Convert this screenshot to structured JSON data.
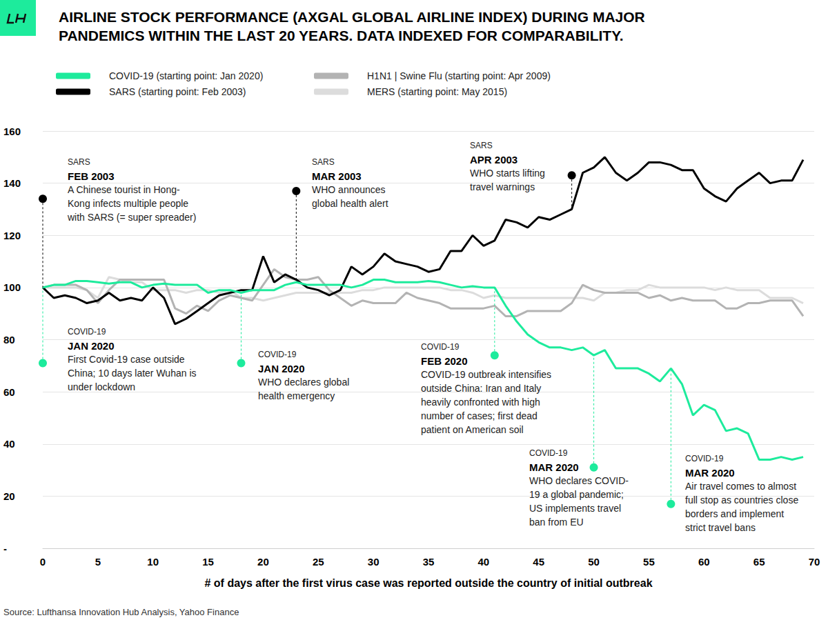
{
  "chart_data": {
    "type": "line",
    "title": "AIRLINE STOCK PERFORMANCE (AXGAL GLOBAL AIRLINE INDEX) DURING MAJOR\nPANDEMICS WITHIN THE LAST 20 YEARS. DATA INDEXED FOR COMPARABILITY.",
    "x_label": "# of days after the first virus case was reported outside the country of initial outbreak",
    "source": "Source: Lufthansa Innovation Hub Analysis, Yahoo Finance",
    "x": [
      0,
      1,
      2,
      3,
      4,
      5,
      6,
      7,
      8,
      9,
      10,
      11,
      12,
      13,
      14,
      15,
      16,
      17,
      18,
      19,
      20,
      21,
      22,
      23,
      24,
      25,
      26,
      27,
      28,
      29,
      30,
      31,
      32,
      33,
      34,
      35,
      36,
      37,
      38,
      39,
      40,
      41,
      42,
      43,
      44,
      45,
      46,
      47,
      48,
      49,
      50,
      51,
      52,
      53,
      54,
      55,
      56,
      57,
      58,
      59,
      60,
      61,
      62,
      63,
      64,
      65,
      66,
      67,
      68,
      69
    ],
    "series": [
      {
        "name": "COVID-19 (starting point: Jan 2020)",
        "color": "#1deb9c",
        "values": [
          100,
          101,
          101,
          102.5,
          102.5,
          102,
          101.5,
          102,
          102,
          100,
          101,
          101.5,
          101,
          101,
          101,
          98,
          99,
          99,
          98,
          99,
          99,
          99,
          101,
          102,
          101,
          101,
          101,
          101,
          100,
          101,
          103,
          103,
          102,
          102,
          102,
          102.5,
          102,
          101,
          100,
          100.5,
          100,
          100,
          93,
          87,
          82,
          79,
          77,
          77,
          76,
          77,
          74,
          76,
          69,
          69,
          69,
          67,
          64,
          69,
          63,
          51,
          55,
          53,
          45,
          46,
          44,
          34,
          34,
          35,
          34,
          35
        ]
      },
      {
        "name": "SARS (starting point: Feb 2003)",
        "color": "#000000",
        "values": [
          100,
          96,
          97,
          96,
          94,
          95,
          98,
          95,
          96,
          95,
          100,
          96,
          86,
          88,
          91,
          94,
          97,
          98,
          99,
          99,
          112,
          102,
          105,
          103,
          100,
          99,
          97,
          99,
          108,
          105,
          108,
          113,
          110,
          109,
          108,
          106,
          107,
          114,
          114,
          120,
          116,
          118,
          126,
          125,
          123,
          127,
          126,
          128,
          130,
          144,
          146,
          150,
          144,
          141,
          144,
          148,
          148,
          147,
          145,
          145,
          138,
          135,
          133,
          138,
          141,
          144,
          140,
          141,
          141,
          149
        ]
      },
      {
        "name": "H1N1 | Swine Flu (starting point: Apr 2009)",
        "color": "#b3b3b3",
        "values": [
          100,
          101,
          101,
          101,
          99,
          94,
          99,
          103,
          103,
          103,
          103,
          103,
          92,
          90,
          93,
          91,
          95,
          97,
          96,
          95,
          101,
          107,
          104,
          103,
          103,
          104,
          99,
          96,
          93,
          95,
          94,
          94,
          94,
          98,
          96,
          95,
          94,
          92,
          92,
          92,
          92,
          93,
          89,
          89,
          91,
          91,
          91,
          91,
          94,
          101,
          99,
          98,
          98,
          98,
          98,
          96,
          97,
          95,
          96,
          95,
          95,
          95,
          92,
          92,
          94,
          94,
          95,
          95,
          95,
          89
        ]
      },
      {
        "name": "MERS (starting point: May 2015)",
        "color": "#dcdcdc",
        "values": [
          100,
          100,
          100,
          100,
          99,
          96,
          104,
          103,
          102,
          102,
          99,
          99,
          99,
          98,
          99,
          99,
          98,
          99,
          96,
          96,
          95,
          96,
          97,
          98,
          98,
          98,
          98,
          98,
          98,
          99,
          99,
          100,
          100,
          100,
          100,
          100,
          100,
          99,
          99,
          98,
          96,
          97,
          96,
          96,
          96,
          96,
          96,
          96,
          96,
          96,
          95,
          98,
          98,
          99,
          99,
          101,
          100,
          100,
          100,
          100,
          100,
          99,
          100,
          99,
          99,
          99,
          96,
          96,
          96,
          94
        ]
      }
    ],
    "xlim": [
      0,
      70
    ],
    "xticks": [
      0,
      5,
      10,
      15,
      20,
      25,
      30,
      35,
      40,
      45,
      50,
      55,
      60,
      65,
      70
    ],
    "ylim": [
      0,
      160
    ],
    "yticks": [
      {
        "value": 0,
        "label": "-"
      },
      20,
      40,
      60,
      80,
      100,
      120,
      140,
      160
    ],
    "grid": true,
    "legend": "top-left",
    "annotations": [
      {
        "series": "SARS",
        "date": "FEB 2003",
        "text": "A Chinese tourist in Hong-\nKong infects multiple people\nwith SARS (= super spreader)",
        "x": 0
      },
      {
        "series": "SARS",
        "date": "MAR 2003",
        "text": "WHO announces\nglobal health alert",
        "x": 23
      },
      {
        "series": "SARS",
        "date": "APR 2003",
        "text": "WHO starts lifting\ntravel warnings",
        "x": 48
      },
      {
        "series": "COVID-19",
        "date": "JAN 2020",
        "text": "First Covid-19 case outside\nChina; 10 days later Wuhan is\nunder lockdown",
        "x": 0
      },
      {
        "series": "COVID-19",
        "date": "JAN 2020",
        "text": "WHO declares global\nhealth emergency",
        "x": 18
      },
      {
        "series": "COVID-19",
        "date": "FEB 2020",
        "text": "COVID-19 outbreak intensifies\noutside China: Iran and Italy\nheavily confronted with high\nnumber of cases; first dead\npatient on American soil",
        "x": 41
      },
      {
        "series": "COVID-19",
        "date": "MAR 2020",
        "text": "WHO declares COVID-\n19 a global pandemic;\nUS implements travel\nban from EU",
        "x": 50
      },
      {
        "series": "COVID-19",
        "date": "MAR 2020",
        "text": "Air travel comes to almost\nfull stop as countries close\nborders and implement\nstrict travel bans",
        "x": 57
      }
    ]
  }
}
